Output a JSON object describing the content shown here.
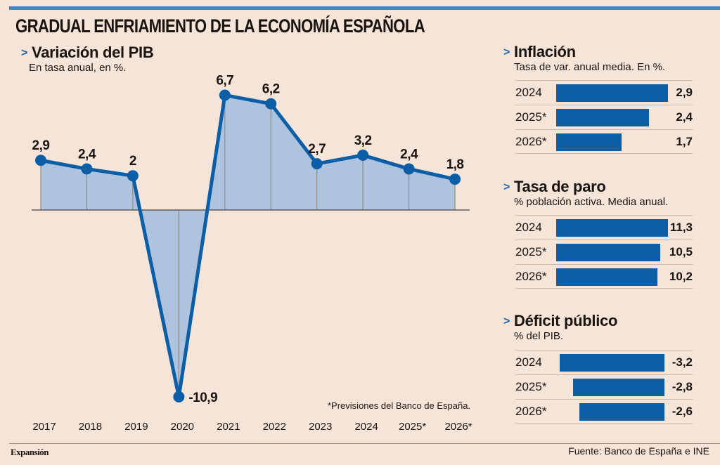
{
  "title": "GRADUAL ENFRIAMIENTO DE LA ECONOMÍA ESPAÑOLA",
  "colors": {
    "accent": "#0c5ea6",
    "area_fill": "#aec3dd",
    "background": "#f5e5d9",
    "top_bar": "#4a86c0"
  },
  "pib": {
    "title": "Variación del PIB",
    "subtitle": "En tasa anual, en %.",
    "note": "*Previsiones del Banco de España."
  },
  "chart_data": [
    {
      "type": "area",
      "title": "Variación del PIB",
      "subtitle": "En tasa anual, en %.",
      "xlabel": "",
      "ylabel": "",
      "categories": [
        "2017",
        "2018",
        "2019",
        "2020",
        "2021",
        "2022",
        "2023",
        "2024",
        "2025*",
        "2026*"
      ],
      "values": [
        2.9,
        2.4,
        2.0,
        -10.9,
        6.7,
        6.2,
        2.7,
        3.2,
        2.4,
        1.8
      ],
      "labels": [
        "2,9",
        "2,4",
        "2",
        "-10,9",
        "6,7",
        "6,2",
        "2,7",
        "3,2",
        "2,4",
        "1,8"
      ],
      "ylim": [
        -10.9,
        6.7
      ],
      "grid": false,
      "legend": "none",
      "annotation": "*Previsiones del Banco de España."
    },
    {
      "type": "bar",
      "title": "Inflación",
      "subtitle": "Tasa de var. anual media. En %.",
      "categories": [
        "2024",
        "2025*",
        "2026*"
      ],
      "values": [
        2.9,
        2.4,
        1.7
      ],
      "labels": [
        "2,9",
        "2,4",
        "1,7"
      ]
    },
    {
      "type": "bar",
      "title": "Tasa de paro",
      "subtitle": "% población activa. Media anual.",
      "categories": [
        "2024",
        "2025*",
        "2026*"
      ],
      "values": [
        11.3,
        10.5,
        10.2
      ],
      "labels": [
        "11,3",
        "10,5",
        "10,2"
      ]
    },
    {
      "type": "bar",
      "title": "Déficit público",
      "subtitle": "% del PIB.",
      "categories": [
        "2024",
        "2025*",
        "2026*"
      ],
      "values": [
        -3.2,
        -2.8,
        -2.6
      ],
      "labels": [
        "-3,2",
        "-2,8",
        "-2,6"
      ]
    }
  ],
  "panels": {
    "inflacion": {
      "title": "Inflación",
      "subtitle": "Tasa de var. anual media. En %."
    },
    "paro": {
      "title": "Tasa de paro",
      "subtitle": "% población activa. Media anual."
    },
    "deficit": {
      "title": "Déficit público",
      "subtitle": "% del PIB."
    }
  },
  "footer": {
    "brand": "Expansión",
    "source": "Fuente: Banco de España e INE"
  },
  "arrow_glyph": ">"
}
